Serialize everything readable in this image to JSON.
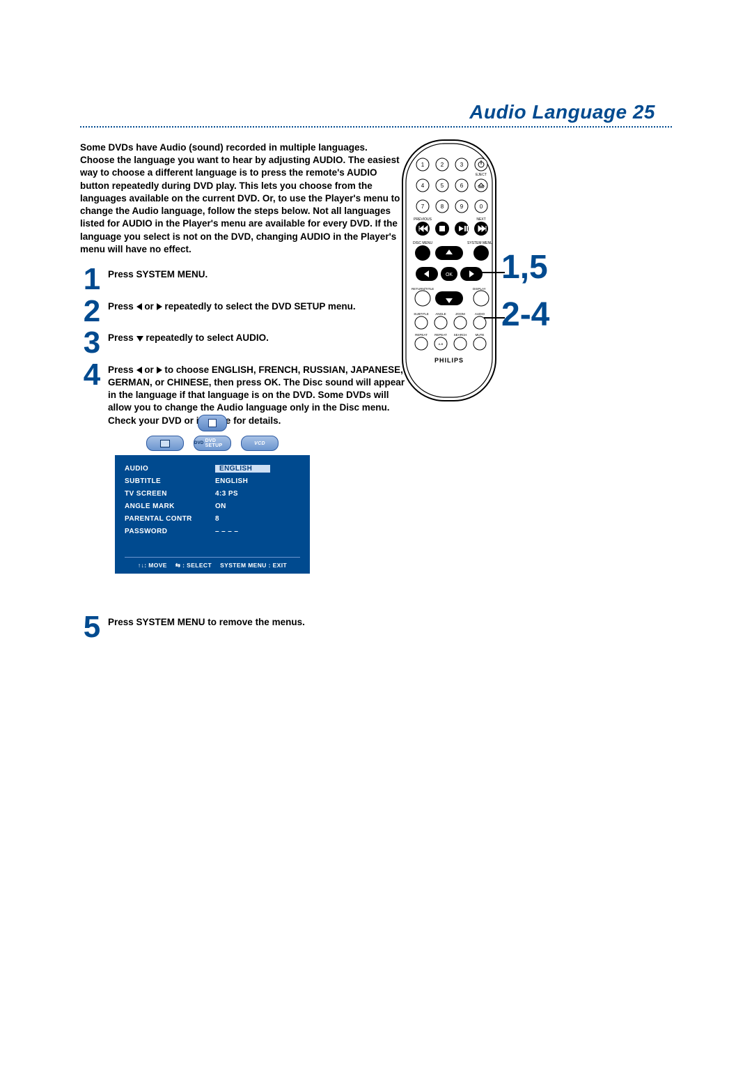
{
  "page": {
    "title": "Audio Language  25",
    "intro": "Some DVDs have Audio (sound) recorded in multiple languages. Choose the language you want to hear by adjusting AUDIO.\nThe easiest way to choose a different language is to press the remote's AUDIO button repeatedly during DVD play. This lets you choose from the languages available on the current DVD. Or, to use the Player's menu to change the Audio language, follow the steps below. Not all languages listed for AUDIO in the Player's menu are available for every DVD. If the language you select is not on the DVD, changing AUDIO in the Player's menu will have no effect."
  },
  "steps": [
    {
      "num": "1",
      "text": "Press SYSTEM MENU."
    },
    {
      "num": "2",
      "text_pre": "Press ",
      "text_post": " repeatedly to select the DVD SETUP menu.",
      "arrows": "lr"
    },
    {
      "num": "3",
      "text_pre": "Press ",
      "text_post": " repeatedly to select AUDIO.",
      "arrows": "d"
    },
    {
      "num": "4",
      "text_pre": "Press ",
      "text_mid": " to choose ENGLISH, FRENCH, RUSSIAN, JAPANESE, GERMAN,  or CHINESE, then press OK.  The Disc sound will appear in the language if that language is on the DVD. Some DVDs will allow you to change the Audio language only in the Disc menu. Check your DVD or its case for details.",
      "arrows": "lr"
    },
    {
      "num": "5",
      "text": "Press SYSTEM MENU to remove the menus."
    }
  ],
  "osd": {
    "tabs": [
      "",
      "DVD SETUP",
      ""
    ],
    "rows": [
      {
        "label": "AUDIO",
        "value": "ENGLISH",
        "hi": true
      },
      {
        "label": "SUBTITLE",
        "value": "ENGLISH",
        "hi": false
      },
      {
        "label": "TV SCREEN",
        "value": "4:3 PS",
        "hi": false
      },
      {
        "label": "ANGLE MARK",
        "value": "ON",
        "hi": false
      },
      {
        "label": "PARENTAL CONTR",
        "value": "8",
        "hi": false
      },
      {
        "label": "PASSWORD",
        "value": "– – – –",
        "hi": false
      }
    ],
    "footer": {
      "move": "↑↓: MOVE",
      "select": "⇆ : SELECT",
      "exit": "SYSTEM MENU : EXIT"
    }
  },
  "remote": {
    "numbers": [
      "1",
      "2",
      "3",
      "4",
      "5",
      "6",
      "7",
      "8",
      "9",
      "0"
    ],
    "eject_label": "EJECT",
    "row_labels_top": {
      "left": "PREVIOUS",
      "right": "NEXT"
    },
    "row_labels_menu": {
      "left": "DISC MENU",
      "right": "SYSTEM MENU"
    },
    "row_labels_return": {
      "left": "RETURN/TITLE",
      "right": "DISPLAY"
    },
    "ok_label": "OK",
    "small_row1": [
      "SUBTITLE",
      "ANGLE",
      "ZOOM",
      "AUDIO"
    ],
    "small_row2": [
      "REPEAT",
      "REPEAT",
      "SEARCH",
      "MUTE"
    ],
    "ab_label": "A-B",
    "brand": "PHILIPS"
  },
  "callouts": {
    "a": "1,5",
    "b": "2-4"
  },
  "colors": {
    "brand_blue": "#004a8f",
    "osd_blue": "#004a8f",
    "osd_hi_bg": "#cfe0f4"
  }
}
